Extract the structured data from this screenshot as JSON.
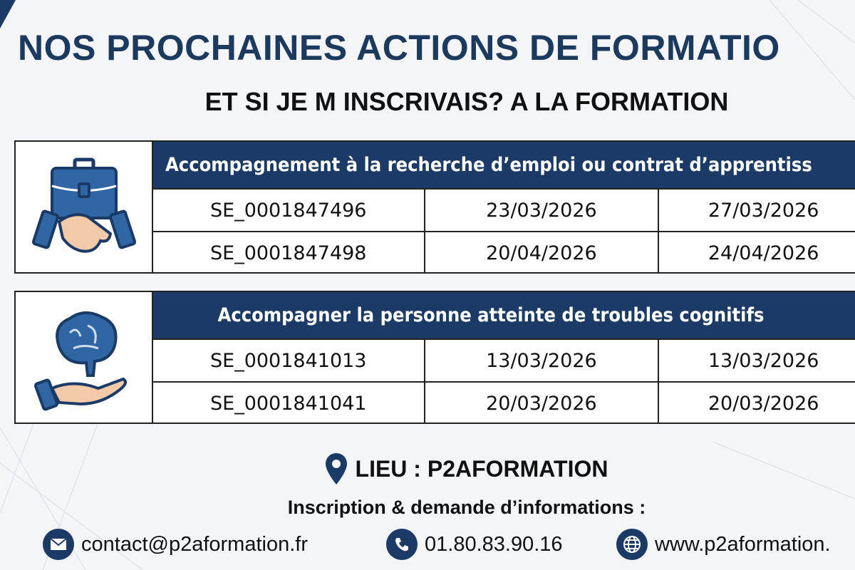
{
  "header": {
    "title": "NOS PROCHAINES ACTIONS DE FORMATIO",
    "subtitle": "ET SI JE M INSCRIVAIS? A LA FORMATION"
  },
  "colors": {
    "navy": "#1b3a66",
    "title": "#1c3a5e",
    "skin": "#f3c9a8",
    "icon_blue": "#2f66a3"
  },
  "trainings": [
    {
      "icon": "handshake-briefcase-icon",
      "title": "Accompagnement à la recherche d’emploi ou contrat d’apprentiss",
      "sessions": [
        {
          "code": "SE_0001847496",
          "start": "23/03/2026",
          "end": "27/03/2026"
        },
        {
          "code": "SE_0001847498",
          "start": "20/04/2026",
          "end": "24/04/2026"
        }
      ]
    },
    {
      "icon": "brain-hand-icon",
      "title": "Accompagner la personne atteinte de troubles cognitifs",
      "sessions": [
        {
          "code": "SE_0001841013",
          "start": "13/03/2026",
          "end": "13/03/2026"
        },
        {
          "code": "SE_0001841041",
          "start": "20/03/2026",
          "end": "20/03/2026"
        }
      ]
    }
  ],
  "footer": {
    "lieu": "LIEU : P2AFORMATION",
    "inscription": "Inscription & demande d’informations :",
    "email": "contact@p2aformation.fr",
    "phone": "01.80.83.90.16",
    "website": "www.p2aformation."
  }
}
